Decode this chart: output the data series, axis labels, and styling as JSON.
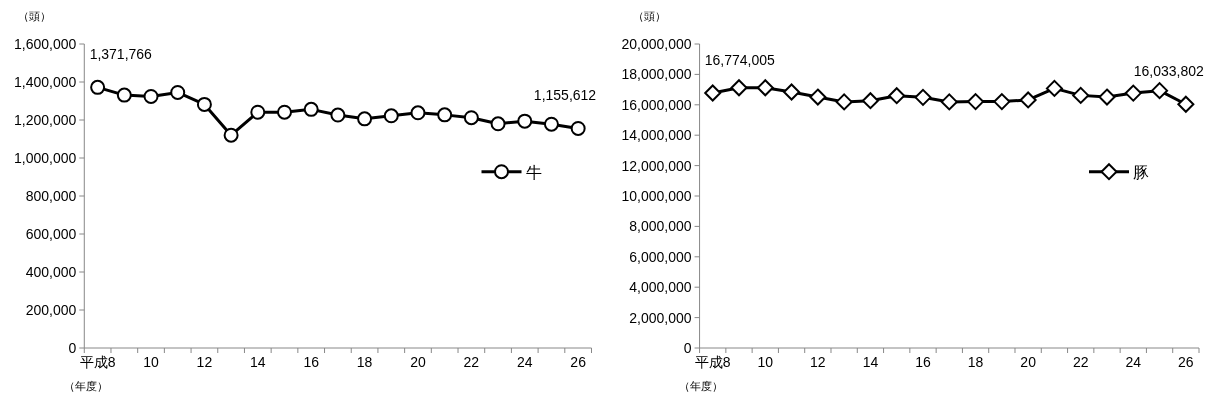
{
  "chart_data": [
    {
      "type": "line",
      "xlabel": "（年度）",
      "ylabel": "（頭）",
      "categories": [
        "平成8",
        null,
        "10",
        null,
        "12",
        null,
        "14",
        null,
        "16",
        null,
        "18",
        null,
        "20",
        null,
        "22",
        null,
        "24",
        null,
        "26"
      ],
      "series": [
        {
          "name": "牛",
          "color": "#000000",
          "values": [
            1371766,
            1331000,
            1324000,
            1345000,
            1282000,
            1120000,
            1241000,
            1241000,
            1256000,
            1226000,
            1206000,
            1222000,
            1238000,
            1227000,
            1212000,
            1180000,
            1194000,
            1178000,
            1155612
          ]
        }
      ],
      "ylim": [
        0,
        1600000
      ],
      "yticks": [
        0,
        {
          "value": 200000,
          "label": "200,000"
        },
        {
          "value": 400000,
          "label": "400,000"
        },
        {
          "value": 600000,
          "label": "600,000"
        },
        {
          "value": 800000,
          "label": "800,000"
        },
        {
          "value": 1000000,
          "label": "1,000,000"
        },
        {
          "value": 1200000,
          "label": "1,200,000"
        },
        {
          "value": 1400000,
          "label": "1,400,000"
        },
        {
          "value": 1600000,
          "label": "1,600,000"
        }
      ],
      "annotations": [
        {
          "text": "1,371,766",
          "x": "平成8",
          "y": 1371766
        },
        {
          "text": "1,155,612",
          "x": "26",
          "y": 1155612
        }
      ],
      "legend": "right",
      "marker": "circle",
      "grid": false
    },
    {
      "type": "line",
      "xlabel": "（年度）",
      "ylabel": "（頭）",
      "categories": [
        "平成8",
        null,
        "10",
        null,
        "12",
        null,
        "14",
        null,
        "16",
        null,
        "18",
        null,
        "20",
        null,
        "22",
        null,
        "24",
        null,
        "26"
      ],
      "series": [
        {
          "name": "豚",
          "color": "#000000",
          "values": [
            16774005,
            17120000,
            17120000,
            16840000,
            16510000,
            16190000,
            16270000,
            16600000,
            16490000,
            16190000,
            16210000,
            16210000,
            16320000,
            17080000,
            16620000,
            16510000,
            16770000,
            16930000,
            16033802
          ]
        }
      ],
      "ylim": [
        0,
        20000000
      ],
      "yticks": [
        0,
        {
          "value": 2000000,
          "label": "2,000,000"
        },
        {
          "value": 4000000,
          "label": "4,000,000"
        },
        {
          "value": 6000000,
          "label": "6,000,000"
        },
        {
          "value": 8000000,
          "label": "8,000,000"
        },
        {
          "value": 10000000,
          "label": "10,000,000"
        },
        {
          "value": 12000000,
          "label": "12,000,000"
        },
        {
          "value": 14000000,
          "label": "14,000,000"
        },
        {
          "value": 16000000,
          "label": "16,000,000"
        },
        {
          "value": 18000000,
          "label": "18,000,000"
        },
        {
          "value": 20000000,
          "label": "20,000,000"
        }
      ],
      "annotations": [
        {
          "text": "16,774,005",
          "x": "平成8",
          "y": 16774005
        },
        {
          "text": "16,033,802",
          "x": "26",
          "y": 16033802
        }
      ],
      "legend": "right",
      "marker": "diamond",
      "grid": false
    }
  ]
}
